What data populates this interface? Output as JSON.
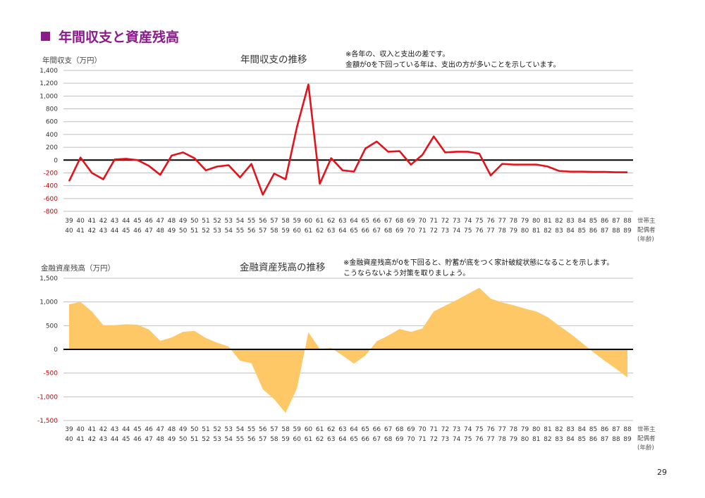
{
  "page": {
    "title": "年間収支と資産残高",
    "number": "29"
  },
  "x_axis": {
    "row1": [
      "39",
      "40",
      "41",
      "42",
      "43",
      "44",
      "45",
      "46",
      "47",
      "48",
      "49",
      "50",
      "51",
      "52",
      "53",
      "54",
      "55",
      "56",
      "57",
      "58",
      "59",
      "60",
      "61",
      "62",
      "63",
      "64",
      "65",
      "66",
      "67",
      "68",
      "69",
      "70",
      "71",
      "72",
      "73",
      "74",
      "75",
      "76",
      "77",
      "78",
      "79",
      "80",
      "81",
      "82",
      "83",
      "84",
      "85",
      "86",
      "87",
      "88"
    ],
    "row2": [
      "40",
      "41",
      "42",
      "43",
      "44",
      "45",
      "46",
      "47",
      "48",
      "49",
      "50",
      "51",
      "52",
      "53",
      "54",
      "55",
      "56",
      "57",
      "58",
      "59",
      "60",
      "61",
      "62",
      "63",
      "64",
      "65",
      "66",
      "67",
      "68",
      "69",
      "70",
      "71",
      "72",
      "73",
      "74",
      "75",
      "76",
      "77",
      "78",
      "79",
      "80",
      "81",
      "82",
      "83",
      "84",
      "85",
      "86",
      "87",
      "88",
      "89"
    ],
    "legend": [
      "世帯主",
      "配偶者",
      "(年齢)"
    ]
  },
  "colors": {
    "title": "#8b1a8b",
    "line": "#e3121b",
    "area": "#fec866",
    "zero": "#000000",
    "grid": "#bfbfbf"
  },
  "chart_data": [
    {
      "type": "line",
      "title": "年間収支の推移",
      "ylabel": "年間収支（万円）",
      "notes": [
        "※各年の、収入と支出の差です。",
        "金額が0を下回っている年は、支出の方が多いことを示しています。"
      ],
      "ylim": [
        -800,
        1400
      ],
      "yticks": [
        "1,400",
        "1,200",
        "1,000",
        "800",
        "600",
        "400",
        "200",
        "0",
        "-200",
        "-400",
        "-600",
        "-800"
      ],
      "grid": true,
      "series": [
        {
          "values": [
            -330,
            40,
            -200,
            -300,
            10,
            20,
            0,
            -90,
            -230,
            70,
            120,
            30,
            -160,
            -100,
            -80,
            -270,
            -60,
            -540,
            -210,
            -300,
            520,
            1180,
            -370,
            30,
            -160,
            -180,
            180,
            290,
            130,
            140,
            -70,
            80,
            370,
            120,
            130,
            130,
            100,
            -240,
            -60,
            -70,
            -70,
            -70,
            -100,
            -170,
            -180,
            -180,
            -185,
            -185,
            -190,
            -190
          ]
        }
      ]
    },
    {
      "type": "area",
      "title": "金融資産残高の推移",
      "ylabel": "金融資産残高（万円）",
      "notes": [
        "※金融資産残高が0を下回ると、貯蓄が底をつく家計破綻状態になることを示します。",
        "こうならないよう対策を取りましょう。"
      ],
      "ylim": [
        -1500,
        1500
      ],
      "yticks": [
        "1,500",
        "1,000",
        "500",
        "0",
        "-500",
        "-1,000",
        "-1,500"
      ],
      "grid": true,
      "series": [
        {
          "values": [
            950,
            1000,
            800,
            510,
            510,
            530,
            520,
            420,
            180,
            250,
            370,
            390,
            240,
            140,
            60,
            -240,
            -290,
            -840,
            -1050,
            -1340,
            -820,
            360,
            10,
            30,
            -130,
            -300,
            -130,
            170,
            290,
            430,
            370,
            440,
            800,
            920,
            1040,
            1170,
            1300,
            1070,
            990,
            930,
            860,
            800,
            680,
            500,
            330,
            140,
            -60,
            -240,
            -410,
            -590
          ]
        }
      ]
    }
  ]
}
